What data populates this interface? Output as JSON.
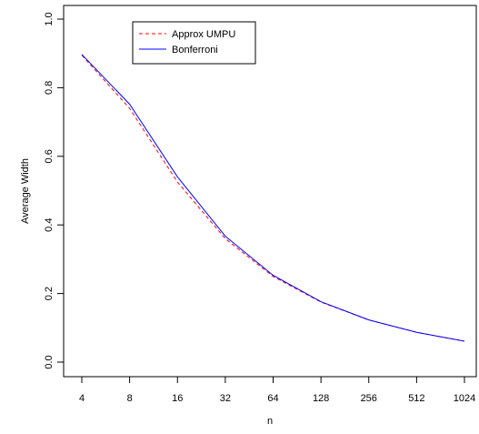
{
  "chart_data": {
    "type": "line",
    "xlabel": "n",
    "ylabel": "Average Width",
    "x": [
      4,
      8,
      16,
      32,
      64,
      128,
      256,
      512,
      1024
    ],
    "x_tick_labels": [
      "4",
      "8",
      "16",
      "32",
      "64",
      "128",
      "256",
      "512",
      "1024"
    ],
    "x_scale": "log2",
    "y_ticks": [
      0.0,
      0.2,
      0.4,
      0.6,
      0.8,
      1.0
    ],
    "y_tick_labels": [
      "0.0",
      "0.2",
      "0.4",
      "0.6",
      "0.8",
      "1.0"
    ],
    "ylim": [
      0.0,
      1.0
    ],
    "grid": false,
    "legend_position": "top-left",
    "series": [
      {
        "name": "Approx UMPU",
        "color": "#ff0000",
        "line_style": "dashed",
        "values": [
          0.895,
          0.74,
          0.525,
          0.36,
          0.25,
          0.175,
          0.123,
          0.087,
          0.061
        ]
      },
      {
        "name": "Bonferroni",
        "color": "#0000ff",
        "line_style": "solid",
        "values": [
          0.897,
          0.752,
          0.54,
          0.367,
          0.253,
          0.176,
          0.123,
          0.087,
          0.061
        ]
      }
    ]
  }
}
